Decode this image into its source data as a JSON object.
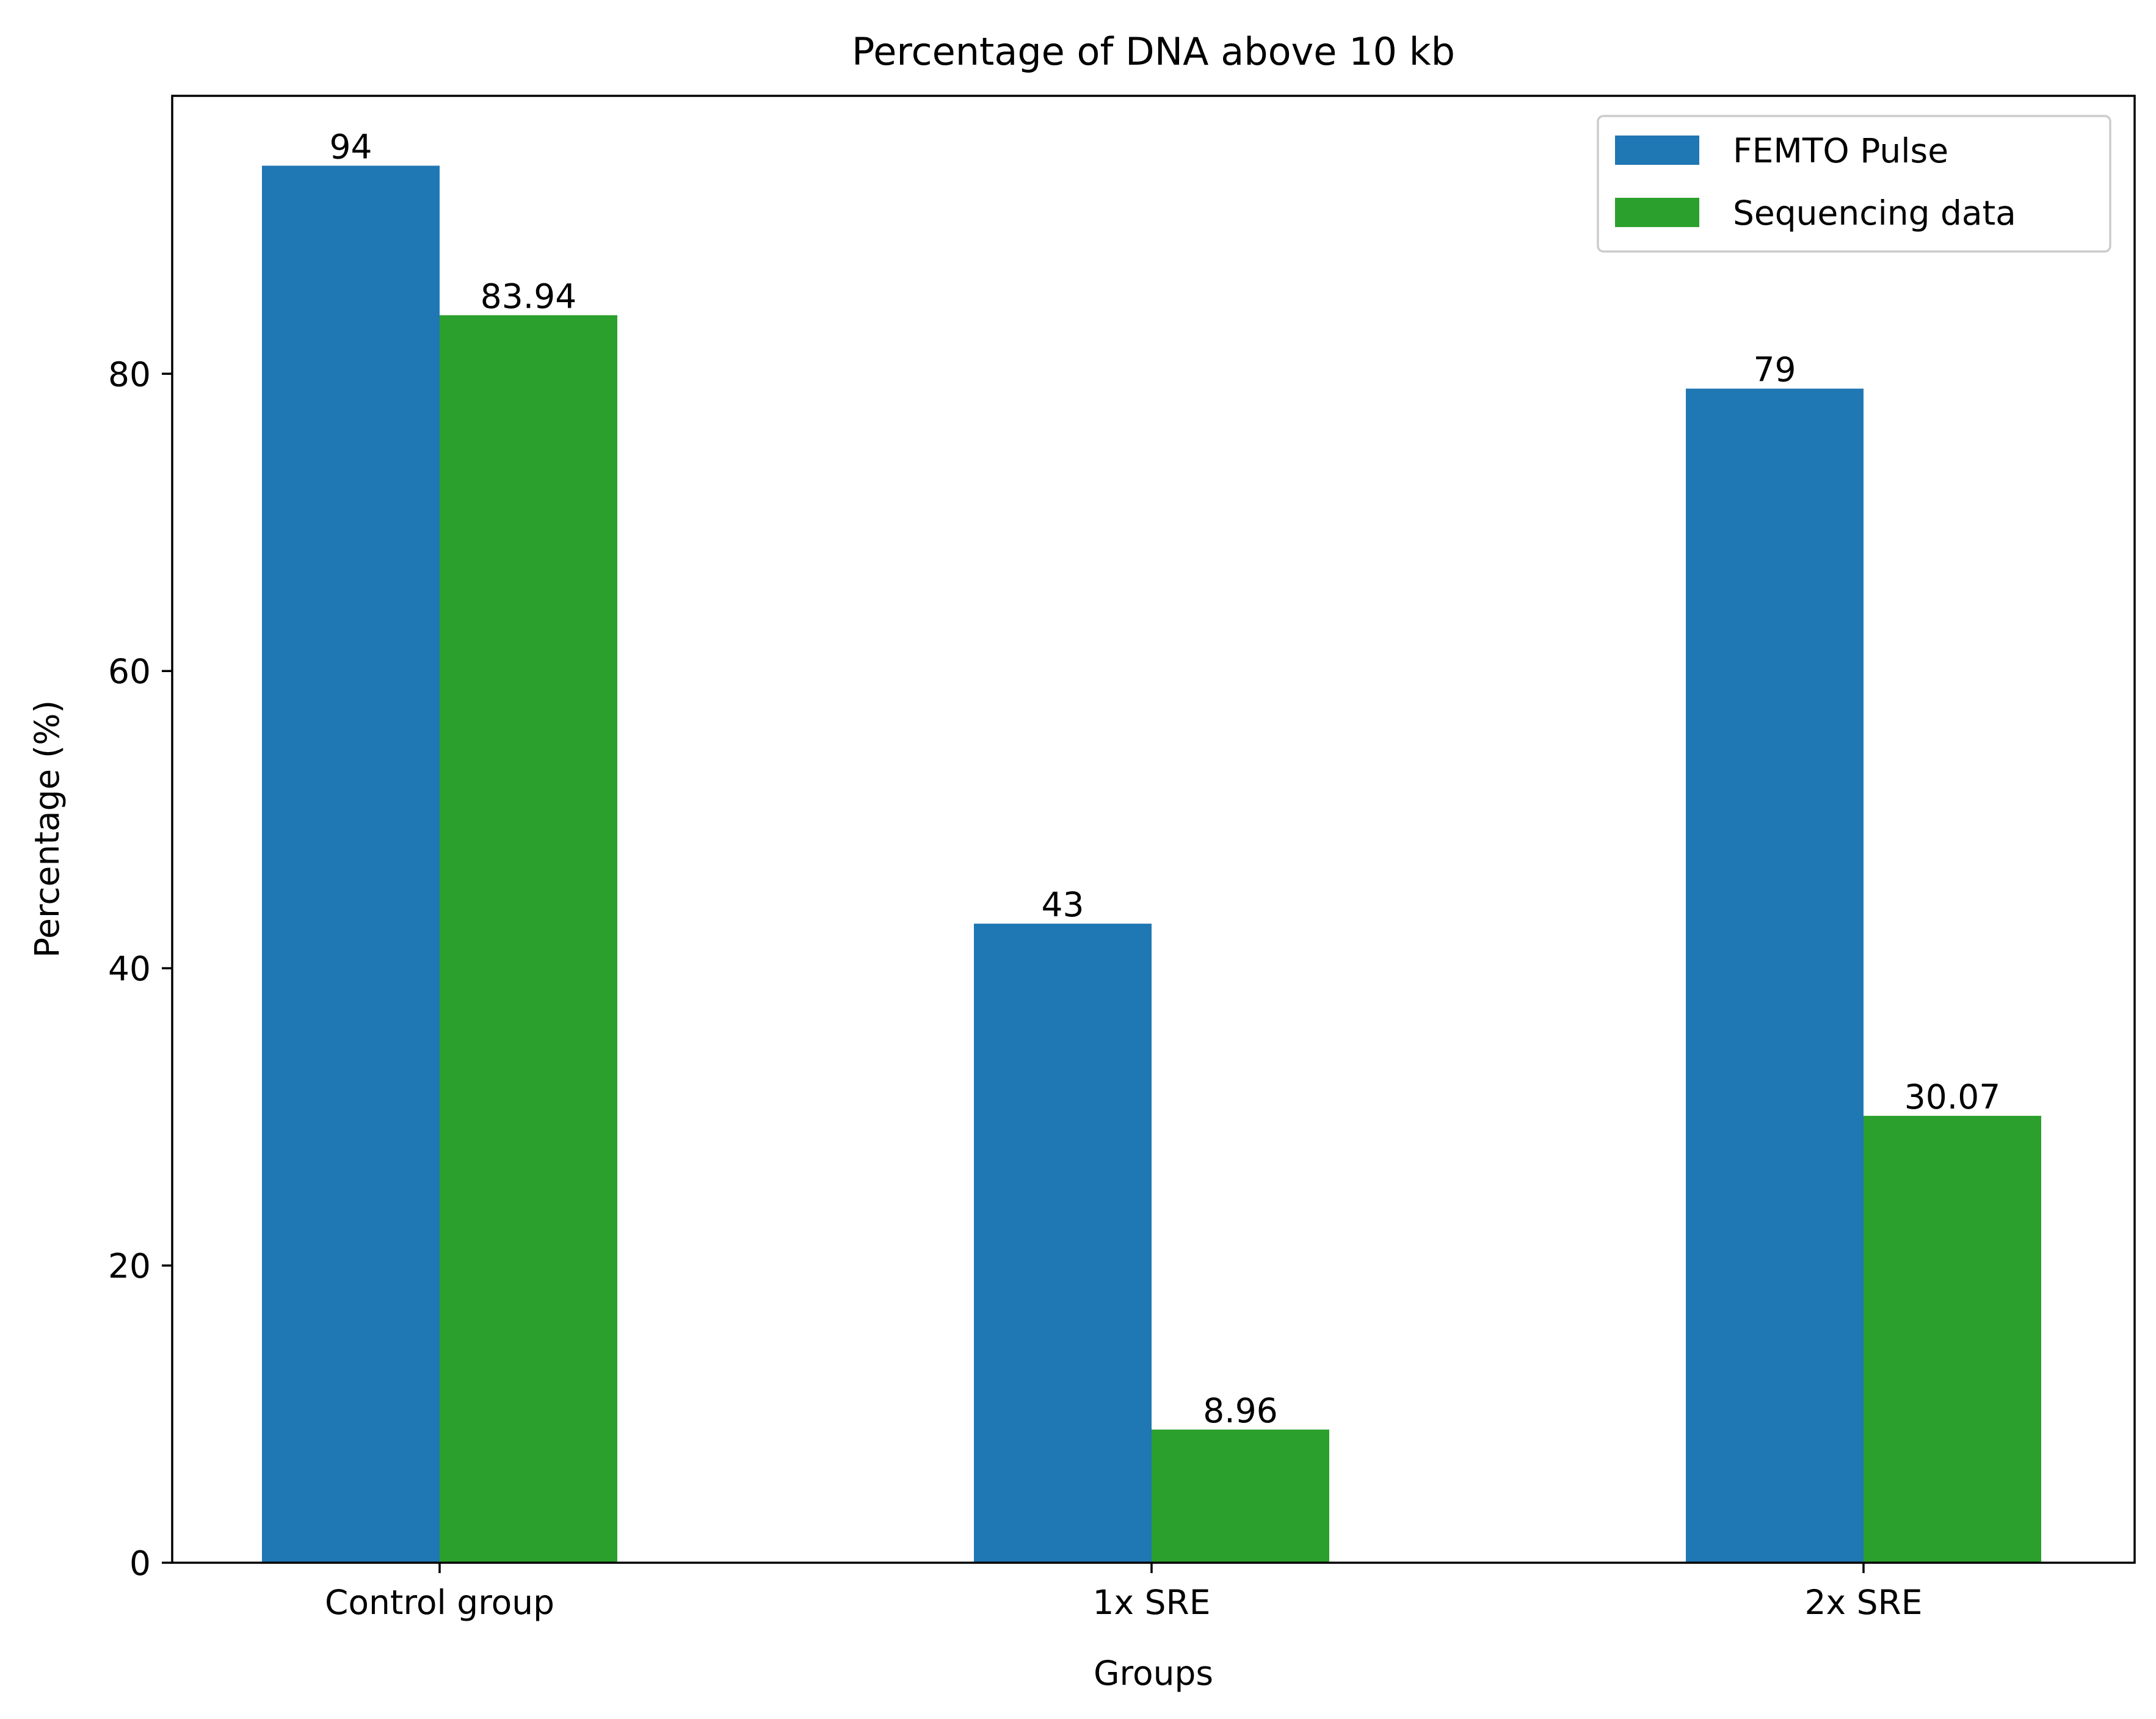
{
  "chart_data": {
    "type": "bar",
    "title": "Percentage of DNA above 10 kb",
    "xlabel": "Groups",
    "ylabel": "Percentage (%)",
    "categories": [
      "Control group",
      "1x SRE",
      "2x SRE"
    ],
    "series": [
      {
        "name": "FEMTO Pulse",
        "color": "#1f77b4",
        "values": [
          94,
          43,
          79
        ],
        "labels": [
          "94",
          "43",
          "79"
        ]
      },
      {
        "name": "Sequencing data",
        "color": "#2ca02c",
        "values": [
          83.94,
          8.96,
          30.07
        ],
        "labels": [
          "83.94",
          "8.96",
          "30.07"
        ]
      }
    ],
    "ylim": [
      0,
      98.7
    ],
    "yticks": [
      0,
      20,
      40,
      60,
      80
    ],
    "grid": false,
    "legend_position": "top-right"
  }
}
